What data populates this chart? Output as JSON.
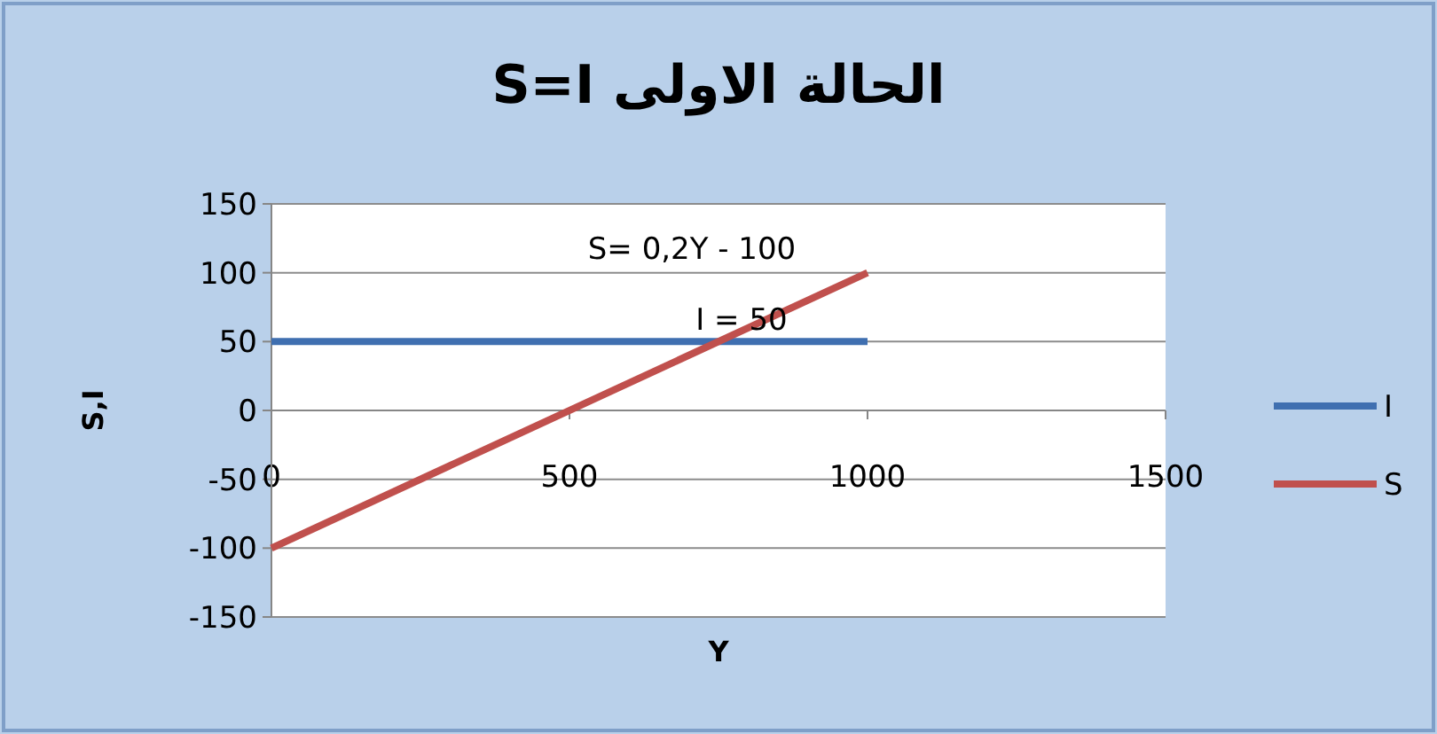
{
  "chart_data": {
    "type": "line",
    "title": "الحالة الاولى S=I",
    "xlabel": "Y",
    "ylabel": "S,I",
    "xlim": [
      0,
      1500
    ],
    "xticks": [
      0,
      500,
      1000,
      1500
    ],
    "ylim": [
      -150,
      150
    ],
    "yticks": [
      -150,
      -100,
      -50,
      0,
      50,
      100,
      150
    ],
    "x": [
      0,
      1000
    ],
    "grid": "y",
    "legend": "right",
    "marker": "none",
    "line_style": "solid",
    "series": [
      {
        "name": "I",
        "color": "#3f6fb0",
        "values": [
          50,
          50
        ]
      },
      {
        "name": "S",
        "color": "#c0504d",
        "values": [
          -100,
          100
        ]
      }
    ],
    "annotations": [
      "S= 0,2Y - 100",
      "I = 50"
    ]
  }
}
